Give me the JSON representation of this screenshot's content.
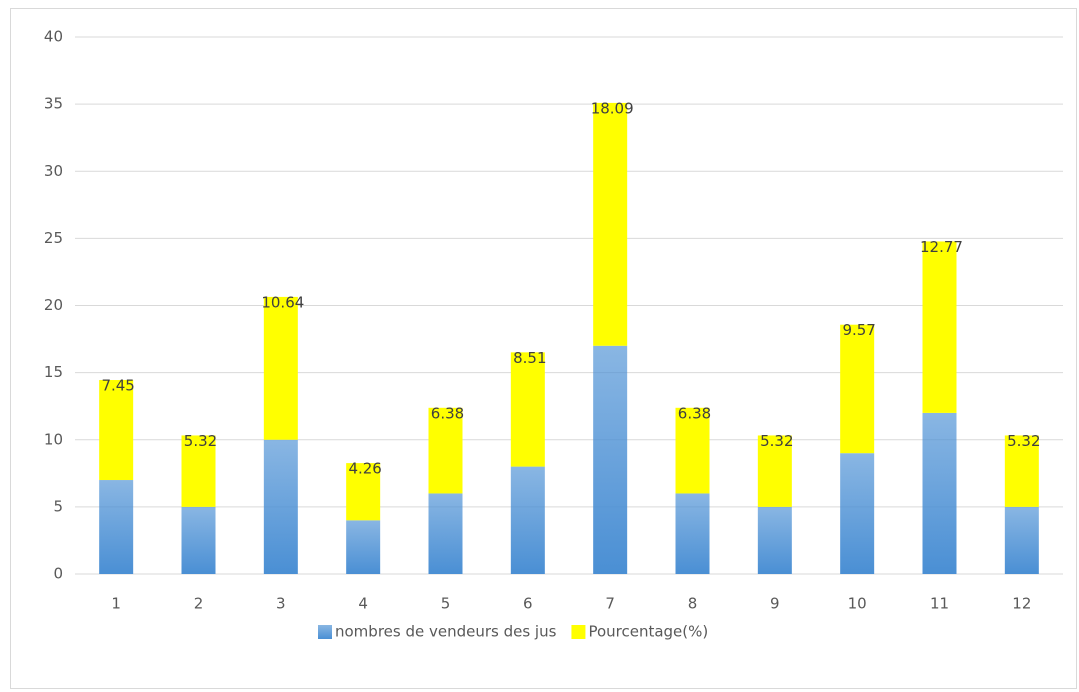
{
  "chart_data": {
    "type": "stacked_bar",
    "categories": [
      "1",
      "2",
      "3",
      "4",
      "5",
      "6",
      "7",
      "8",
      "9",
      "10",
      "11",
      "12"
    ],
    "series": [
      {
        "name": "nombres de vendeurs des jus",
        "color": "#4a8fd4",
        "values": [
          7,
          5,
          10,
          4,
          6,
          8,
          17,
          6,
          5,
          9,
          12,
          5
        ]
      },
      {
        "name": "Pourcentage(%)",
        "color": "#ffff00",
        "values": [
          7.45,
          5.32,
          10.64,
          4.26,
          6.38,
          8.51,
          18.09,
          6.38,
          5.32,
          9.57,
          12.77,
          5.32
        ],
        "data_labels": true
      }
    ],
    "ylim": [
      0,
      40
    ],
    "yticks": [
      0,
      5,
      10,
      15,
      20,
      25,
      30,
      35,
      40
    ],
    "grid": true,
    "legend": "bottom"
  }
}
